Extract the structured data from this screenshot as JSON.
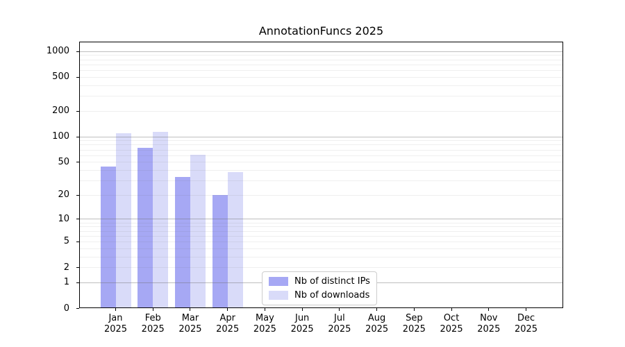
{
  "chart_data": {
    "type": "bar",
    "title": "AnnotationFuncs 2025",
    "categories": [
      "Jan",
      "Feb",
      "Mar",
      "Apr",
      "May",
      "Jun",
      "Jul",
      "Aug",
      "Sep",
      "Oct",
      "Nov",
      "Dec"
    ],
    "category_year_label": "2025",
    "series": [
      {
        "name": "Nb of distinct IPs",
        "color": "#a6a8f4",
        "values": [
          44,
          74,
          33,
          20,
          0,
          0,
          0,
          0,
          0,
          0,
          0,
          0
        ]
      },
      {
        "name": "Nb of downloads",
        "color": "#d9dbf9",
        "values": [
          110,
          113,
          61,
          38,
          0,
          0,
          0,
          0,
          0,
          0,
          0,
          0
        ]
      }
    ],
    "yticks": [
      0,
      1,
      2,
      5,
      10,
      20,
      50,
      100,
      200,
      500,
      1000
    ],
    "yaxis_scale": "log10(1+x)",
    "ylim": [
      0,
      1290
    ],
    "xlabel": "",
    "ylabel": "",
    "grid": "horizontal, major at decades (1,10,100,1000), minor at 2-9 per decade, drawn above bars",
    "legend_position": "bottom-center inside plot",
    "colors": {
      "major_grid": "#c3c3c3",
      "minor_grid": "#ececec",
      "axis": "#000000",
      "background": "#ffffff"
    }
  }
}
